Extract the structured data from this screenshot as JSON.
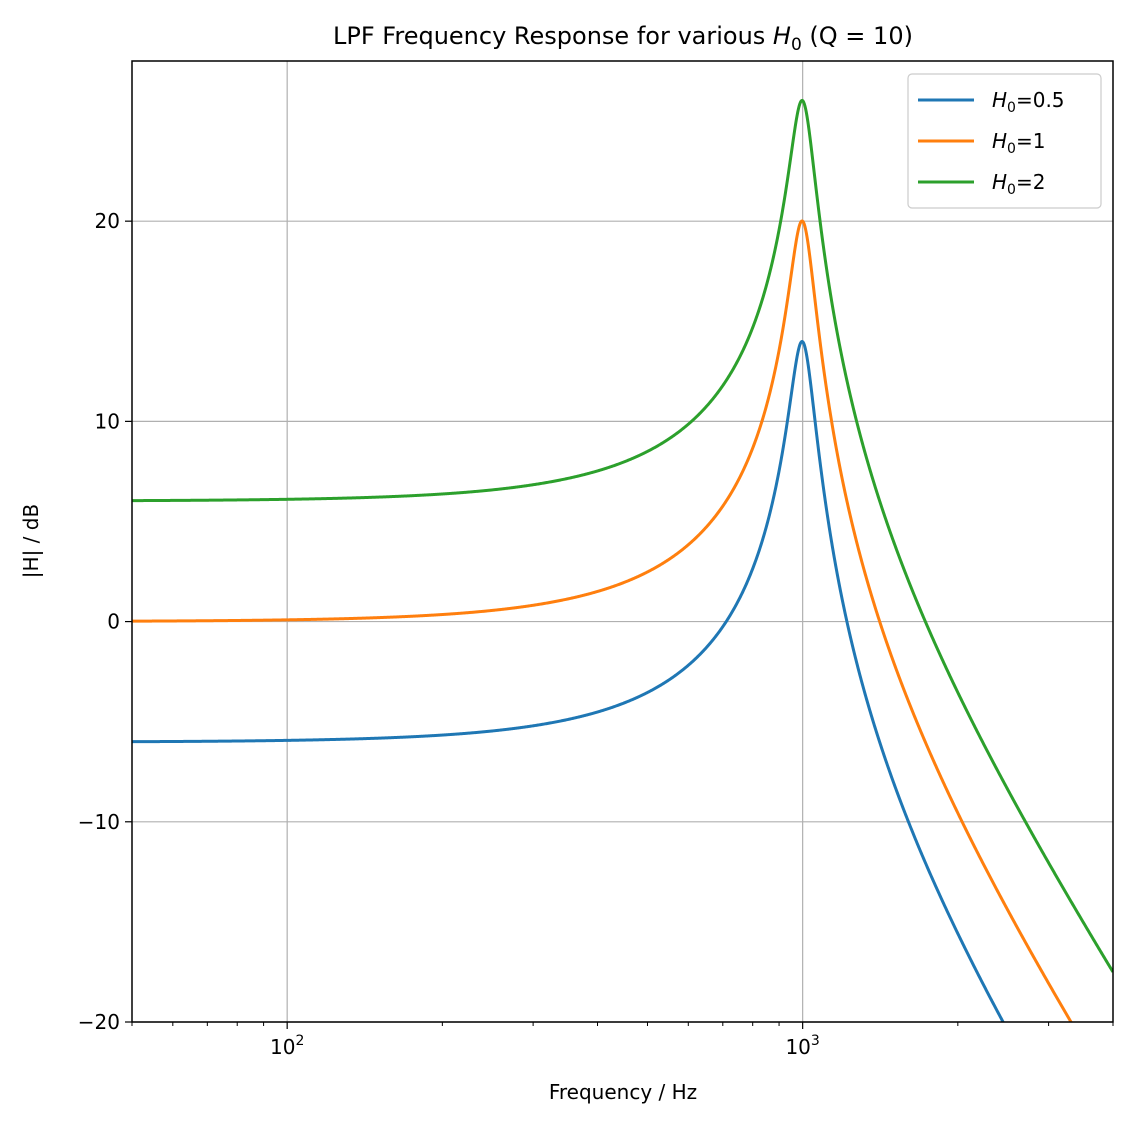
{
  "chart_data": {
    "type": "line",
    "title_prefix": "LPF Frequency Response for various ",
    "title_var": "H",
    "title_sub": "0",
    "title_suffix": " (Q = 10)",
    "xlabel": "Frequency / Hz",
    "ylabel": "|H| / dB",
    "xscale": "log",
    "xlim": [
      50,
      4000
    ],
    "ylim": [
      -20,
      28
    ],
    "x_ticks": [
      {
        "value": 100,
        "base": "10",
        "exp": "2"
      },
      {
        "value": 1000,
        "base": "10",
        "exp": "3"
      }
    ],
    "y_ticks": [
      -20,
      -10,
      0,
      10,
      20
    ],
    "y_tick_labels": [
      "−20",
      "−10",
      "0",
      "10",
      "20"
    ],
    "grid": true,
    "legend_position": "top-right",
    "model": {
      "f0": 1000,
      "Q": 10
    },
    "series": [
      {
        "name_var": "H",
        "name_sub": "0",
        "name_suffix": "=0.5",
        "H0": 0.5,
        "color": "#1f77b4",
        "sample_points": [
          [
            50,
            -6.0
          ],
          [
            500,
            -3.5
          ],
          [
            1000,
            14.0
          ],
          [
            2460,
            -20
          ]
        ]
      },
      {
        "name_var": "H",
        "name_sub": "0",
        "name_suffix": "=1",
        "H0": 1,
        "color": "#ff7f0e",
        "sample_points": [
          [
            50,
            0.0
          ],
          [
            500,
            2.5
          ],
          [
            1000,
            20.0
          ],
          [
            3400,
            -20
          ]
        ]
      },
      {
        "name_var": "H",
        "name_sub": "0",
        "name_suffix": "=2",
        "H0": 2,
        "color": "#2ca02c",
        "sample_points": [
          [
            50,
            6.0
          ],
          [
            500,
            8.5
          ],
          [
            1000,
            26.0
          ],
          [
            4000,
            -17.5
          ]
        ]
      }
    ]
  }
}
